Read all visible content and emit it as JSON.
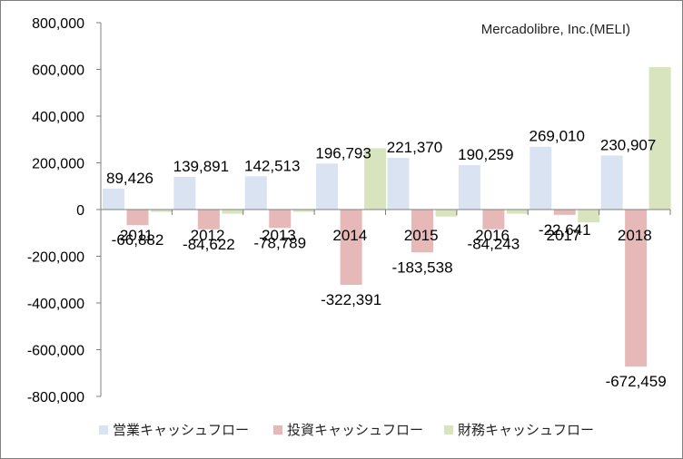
{
  "chart_data": {
    "type": "bar",
    "subtitle": "Mercadolibre, Inc.(MELI)",
    "categories": [
      "2011",
      "2012",
      "2013",
      "2014",
      "2015",
      "2016",
      "2017",
      "2018"
    ],
    "series": [
      {
        "name": "営業キャッシュフロー",
        "color": "#dae3f1",
        "values": [
          89426,
          139891,
          142513,
          196793,
          221370,
          190259,
          269010,
          230907
        ]
      },
      {
        "name": "投資キャッシュフロー",
        "color": "#e6b8b7",
        "values": [
          -66882,
          -84622,
          -78789,
          -322391,
          -183538,
          -84243,
          -22641,
          -672459
        ]
      },
      {
        "name": "財務キャッシュフロー",
        "color": "#d7e4bd",
        "values": [
          -10000,
          -18000,
          -10000,
          262000,
          -30000,
          -18000,
          -55000,
          610000
        ]
      }
    ],
    "data_labels": {
      "営業キャッシュフロー": [
        "89,426",
        "139,891",
        "142,513",
        "196,793",
        "221,370",
        "190,259",
        "269,010",
        "230,907"
      ],
      "投資キャッシュフロー": [
        "-66,882",
        "-84,622",
        "-78,789",
        "-322,391",
        "-183,538",
        "-84,243",
        "-22,641",
        "-672,459"
      ]
    },
    "y_ticks": [
      "800,000",
      "600,000",
      "400,000",
      "200,000",
      "0",
      "-200,000",
      "-400,000",
      "-600,000",
      "-800,000"
    ],
    "ylim": [
      -800000,
      800000
    ],
    "grid": false,
    "legend_position": "bottom"
  }
}
